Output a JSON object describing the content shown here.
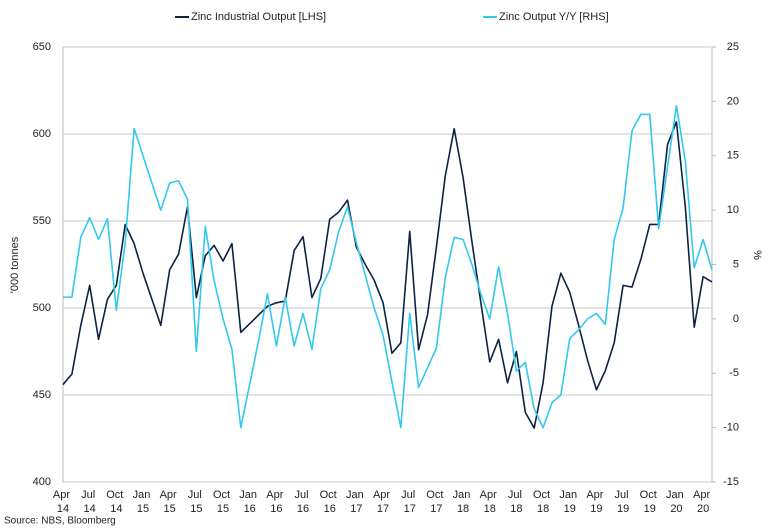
{
  "chart_data": {
    "type": "line",
    "series": [
      {
        "name": "Zinc Industrial Output [LHS]",
        "color": "#0d2344",
        "axis": "y",
        "values": [
          456,
          462,
          490,
          513,
          482,
          505,
          513,
          548,
          537,
          520,
          505,
          490,
          522,
          531,
          558,
          506,
          530,
          536,
          527,
          537,
          486,
          491,
          496,
          501,
          503,
          504,
          533,
          541,
          506,
          517,
          551,
          555,
          562,
          535,
          525,
          516,
          503,
          474,
          480,
          544,
          476,
          496,
          535,
          576,
          603,
          575,
          538,
          503,
          469,
          482,
          457,
          475,
          440,
          431,
          457,
          501,
          520,
          509,
          490,
          470,
          453,
          464,
          480,
          513,
          512,
          528,
          548,
          548,
          594,
          607,
          558,
          489,
          518,
          515
        ]
      },
      {
        "name": "Zinc Output Y/Y [RHS]",
        "color": "#33c9ec",
        "axis": "y2",
        "values": [
          2,
          2,
          7.5,
          9.3,
          7.3,
          9.2,
          0.8,
          7,
          17.5,
          15,
          12.5,
          10,
          12.5,
          12.7,
          11,
          -3,
          8.5,
          3.5,
          0,
          -2.8,
          -10,
          -6,
          -2,
          2.3,
          -2.5,
          2,
          -2.5,
          0.5,
          -2.8,
          2.8,
          4.5,
          8,
          10.3,
          7,
          4,
          1,
          -1.5,
          -5.8,
          -10,
          0.5,
          -6.3,
          -4.5,
          -2.7,
          3.8,
          7.5,
          7.3,
          5,
          2.3,
          0,
          4.8,
          0.5,
          -4.8,
          -4,
          -8.3,
          -10,
          -7.7,
          -7,
          -1.8,
          -1,
          0,
          0.5,
          -0.5,
          7.3,
          10.2,
          17.3,
          18.8,
          18.8,
          8.3,
          14,
          19.6,
          14.5,
          4.7,
          7.3,
          4.5
        ]
      }
    ],
    "categories": [
      "Apr 14",
      null,
      null,
      "Jul 14",
      null,
      null,
      "Oct 14",
      null,
      null,
      "Jan 15",
      null,
      null,
      "Apr 15",
      null,
      null,
      "Jul 15",
      null,
      null,
      "Oct 15",
      null,
      null,
      "Jan 16",
      null,
      null,
      "Apr 16",
      null,
      null,
      "Jul 16",
      null,
      null,
      "Oct 16",
      null,
      null,
      "Jan 17",
      null,
      null,
      "Apr 17",
      null,
      null,
      "Jul 17",
      null,
      null,
      "Oct 17",
      null,
      null,
      "Jan 18",
      null,
      null,
      "Apr 18",
      null,
      null,
      "Jul 18",
      null,
      null,
      "Oct 18",
      null,
      null,
      "Jan 19",
      null,
      null,
      "Apr 19",
      null,
      null,
      "Jul 19",
      null,
      null,
      "Oct 19",
      null,
      null,
      "Jan 20",
      null,
      null,
      "Apr 20",
      null
    ],
    "ylabel": "'000 tonnes",
    "y2label": "%",
    "ylim": [
      400,
      650
    ],
    "yticks": [
      400,
      450,
      500,
      550,
      600,
      650
    ],
    "y2lim": [
      -15,
      25
    ],
    "y2ticks": [
      -15,
      -10,
      -5,
      0,
      5,
      10,
      15,
      20,
      25
    ],
    "grid": true,
    "source": "Source: NBS, Bloomberg"
  }
}
